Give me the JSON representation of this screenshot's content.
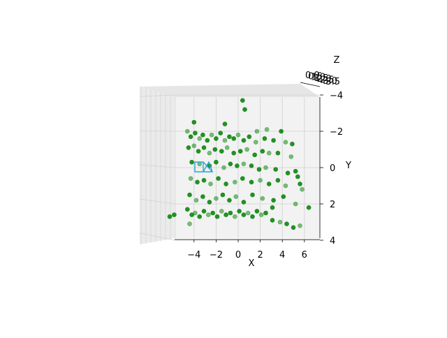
{
  "chart_data": {
    "type": "scatter",
    "projection": "3d",
    "title": "",
    "xlabel": "X",
    "ylabel": "Y",
    "zlabel": "Z",
    "xlim": [
      -6,
      7
    ],
    "ylim": [
      -4,
      4
    ],
    "y_inverted": true,
    "xticks": [
      "−4",
      "−2",
      "0",
      "2",
      "4",
      "6"
    ],
    "yticks": [
      "−4",
      "−2",
      "0",
      "2",
      "4"
    ],
    "zticks": [
      "0.0",
      "0.5",
      "1.0",
      "1.5",
      "2.0",
      "2.5",
      "3.0",
      "3.5"
    ],
    "grid": true,
    "series": [
      {
        "name": "",
        "color": "#008000",
        "points": [
          [
            -4.6,
            -2.0
          ],
          [
            -4.3,
            -1.7
          ],
          [
            -3.9,
            -1.9
          ],
          [
            -3.5,
            -1.6
          ],
          [
            -3.2,
            -1.8
          ],
          [
            -2.8,
            -1.5
          ],
          [
            -2.4,
            -1.8
          ],
          [
            -2.0,
            -1.6
          ],
          [
            -1.6,
            -1.9
          ],
          [
            -1.2,
            -1.5
          ],
          [
            -0.8,
            -1.7
          ],
          [
            -0.4,
            -1.6
          ],
          [
            0.0,
            -1.8
          ],
          [
            0.5,
            -1.5
          ],
          [
            1.0,
            -1.7
          ],
          [
            1.6,
            -1.4
          ],
          [
            2.4,
            -1.6
          ],
          [
            3.2,
            -1.5
          ],
          [
            4.3,
            -1.4
          ],
          [
            4.9,
            -1.3
          ],
          [
            -4.5,
            -1.1
          ],
          [
            -4.0,
            -1.2
          ],
          [
            -3.6,
            -0.9
          ],
          [
            -3.1,
            -1.1
          ],
          [
            -2.6,
            -0.8
          ],
          [
            -2.1,
            -1.0
          ],
          [
            -1.5,
            -0.9
          ],
          [
            -1.0,
            -1.1
          ],
          [
            -0.4,
            -0.8
          ],
          [
            0.2,
            -0.9
          ],
          [
            0.8,
            -1.0
          ],
          [
            1.5,
            -0.7
          ],
          [
            2.2,
            -0.9
          ],
          [
            2.8,
            -0.8
          ],
          [
            3.6,
            -0.8
          ],
          [
            -4.2,
            -0.3
          ],
          [
            -3.5,
            -0.2
          ],
          [
            -2.6,
            -0.1
          ],
          [
            -2.0,
            -0.3
          ],
          [
            -1.3,
            0.0
          ],
          [
            -0.7,
            -0.2
          ],
          [
            -0.1,
            -0.1
          ],
          [
            0.5,
            -0.2
          ],
          [
            1.2,
            -0.1
          ],
          [
            1.9,
            0.1
          ],
          [
            2.5,
            0.0
          ],
          [
            3.4,
            0.1
          ],
          [
            4.5,
            0.3
          ],
          [
            -4.3,
            0.6
          ],
          [
            -3.7,
            0.8
          ],
          [
            -3.1,
            0.7
          ],
          [
            -2.5,
            0.9
          ],
          [
            -1.8,
            0.6
          ],
          [
            -1.1,
            0.9
          ],
          [
            -0.3,
            0.8
          ],
          [
            0.4,
            0.6
          ],
          [
            1.2,
            0.8
          ],
          [
            2.0,
            0.7
          ],
          [
            2.8,
            0.9
          ],
          [
            3.6,
            0.7
          ],
          [
            4.3,
            1.0
          ],
          [
            5.6,
            0.9
          ],
          [
            -4.4,
            1.5
          ],
          [
            -3.8,
            1.8
          ],
          [
            -3.2,
            1.6
          ],
          [
            -2.6,
            1.9
          ],
          [
            -2.0,
            1.7
          ],
          [
            -1.4,
            1.5
          ],
          [
            -0.8,
            1.8
          ],
          [
            -0.2,
            1.6
          ],
          [
            0.5,
            1.9
          ],
          [
            1.3,
            1.5
          ],
          [
            2.2,
            1.7
          ],
          [
            3.2,
            1.8
          ],
          [
            4.1,
            1.6
          ],
          [
            5.2,
            2.0
          ],
          [
            -4.6,
            2.3
          ],
          [
            -4.2,
            2.6
          ],
          [
            -3.9,
            2.5
          ],
          [
            -3.5,
            2.7
          ],
          [
            -3.1,
            2.4
          ],
          [
            -2.7,
            2.6
          ],
          [
            -2.3,
            2.5
          ],
          [
            -1.9,
            2.7
          ],
          [
            -1.5,
            2.4
          ],
          [
            -1.1,
            2.6
          ],
          [
            -0.7,
            2.5
          ],
          [
            -0.3,
            2.7
          ],
          [
            0.1,
            2.4
          ],
          [
            0.5,
            2.6
          ],
          [
            0.9,
            2.5
          ],
          [
            1.3,
            2.7
          ],
          [
            1.7,
            2.4
          ],
          [
            2.1,
            2.6
          ],
          [
            2.5,
            2.5
          ],
          [
            3.1,
            2.9
          ],
          [
            3.8,
            3.0
          ],
          [
            4.4,
            3.1
          ],
          [
            5.0,
            3.3
          ],
          [
            5.6,
            3.2
          ],
          [
            -6.2,
            2.7
          ],
          [
            -5.8,
            2.6
          ],
          [
            -4.4,
            3.1
          ],
          [
            0.4,
            -3.7
          ],
          [
            0.6,
            -3.2
          ],
          [
            1.7,
            -2.0
          ],
          [
            -4.0,
            -2.5
          ],
          [
            -1.2,
            -2.4
          ],
          [
            2.6,
            -2.1
          ],
          [
            3.9,
            -2.0
          ],
          [
            5.4,
            0.5
          ],
          [
            5.8,
            1.2
          ],
          [
            6.4,
            2.2
          ],
          [
            5.2,
            0.2
          ],
          [
            4.8,
            -0.6
          ],
          [
            3.1,
            2.2
          ]
        ]
      }
    ],
    "annotations": [
      {
        "type": "camera-frustum-outline",
        "color": "#2aa3d6"
      }
    ]
  }
}
